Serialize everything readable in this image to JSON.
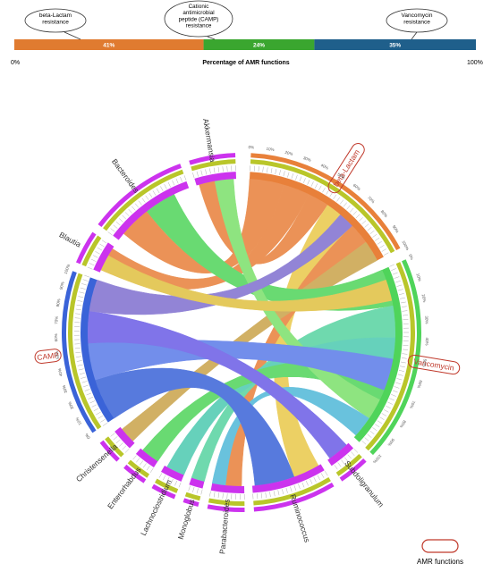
{
  "bar_chart": {
    "type": "bar",
    "orientation": "horizontal-stacked",
    "title": "Percentage of AMR functions",
    "x_tick_labels": [
      "0%",
      "100%"
    ],
    "categories": [
      "beta-Lactam resistance",
      "Cationic antimicrobial peptide (CAMP) resistance",
      "Vancomycin resistance"
    ],
    "callouts": [
      "beta-Lactam\nresistance",
      "Cationic\nantimicrobial\npeptide (CAMP)\nresistance",
      "Vancomycin\nresistance"
    ],
    "values": [
      41,
      24,
      35
    ],
    "value_labels": [
      "41%",
      "24%",
      "35%"
    ],
    "colors": [
      "#e07b30",
      "#3aa62f",
      "#1f5f8b"
    ]
  },
  "chord": {
    "type": "chord",
    "nodes": [
      {
        "label": "beta-Lactam",
        "boxed": true
      },
      {
        "label": "Vancomycin",
        "boxed": true
      },
      {
        "label": "Subdoligranulum",
        "boxed": false
      },
      {
        "label": "Ruminococcus",
        "boxed": false
      },
      {
        "label": "Parabacteroides",
        "boxed": false
      },
      {
        "label": "Monoglobus",
        "boxed": false
      },
      {
        "label": "Lachnoclostridium",
        "boxed": false
      },
      {
        "label": "Enterorhabdus",
        "boxed": false
      },
      {
        "label": "Christensenella",
        "boxed": false
      },
      {
        "label": "CAMP",
        "boxed": true
      },
      {
        "label": "Blautia",
        "boxed": false
      },
      {
        "label": "Bacteroides",
        "boxed": false
      },
      {
        "label": "Akkermansia",
        "boxed": false
      }
    ],
    "legend_label": "AMR functions"
  },
  "chart_data": {
    "type": "bar",
    "title": "Percentage of AMR functions",
    "categories": [
      "beta-Lactam resistance",
      "Cationic antimicrobial peptide (CAMP) resistance",
      "Vancomycin resistance"
    ],
    "values": [
      41,
      24,
      35
    ],
    "unit": "%"
  },
  "colors": {
    "beta_lactam": "#e8803a",
    "camp": "#3a63d8",
    "vancomycin": "#4fd45a",
    "magenta": "#cc33ee",
    "olive": "#b9c62a",
    "box_outline": "#c0392b"
  }
}
